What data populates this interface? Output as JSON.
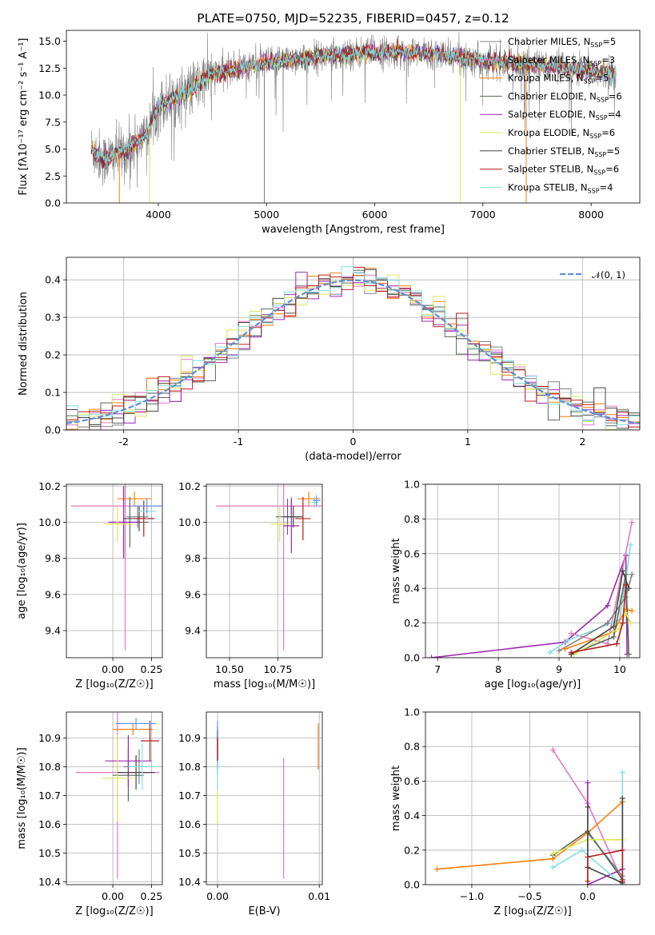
{
  "colors": {
    "Chabrier MILES": "#808080",
    "Salpeter MILES": "#e377c2",
    "Kroupa MILES": "#ff7f0e",
    "Chabrier ELODIE": "#556b55",
    "Salpeter ELODIE": "#9c27b0",
    "Kroupa ELODIE": "#dde65a",
    "Chabrier STELIB": "#444444",
    "Salpeter STELIB": "#b71c1c",
    "Kroupa STELIB": "#80dfe6",
    "extra_blue": "#6495ed",
    "normal_curve": "#5b8fd6"
  },
  "chart_data": [
    {
      "id": "spectrum",
      "type": "line",
      "title": "PLATE=0750, MJD=52235, FIBERID=0457, z=0.12",
      "xlabel": "wavelength [Angstrom, rest frame]",
      "ylabel": "Flux [fλ10⁻¹⁷ erg cm⁻² s⁻¹ A⁻¹]",
      "xlim": [
        3150,
        8450
      ],
      "ylim": [
        0,
        16
      ],
      "xticks": [
        4000,
        5000,
        6000,
        7000,
        8000
      ],
      "yticks": [
        0.0,
        2.5,
        5.0,
        7.5,
        10.0,
        12.5,
        15.0
      ],
      "grid": false,
      "legend_position": "top-right",
      "legend": [
        "Chabrier MILES, N_SSP=5",
        "Salpeter MILES, N_SSP=3",
        "Kroupa MILES, N_SSP=5",
        "Chabrier ELODIE, N_SSP=6",
        "Salpeter ELODIE, N_SSP=4",
        "Kroupa ELODIE, N_SSP=6",
        "Chabrier STELIB, N_SSP=5",
        "Salpeter STELIB, N_SSP=6",
        "Kroupa STELIB, N_SSP=4"
      ],
      "continuum": [
        [
          3380,
          5.0
        ],
        [
          3500,
          4.0
        ],
        [
          3700,
          4.8
        ],
        [
          3900,
          6.5
        ],
        [
          4000,
          9.0
        ],
        [
          4100,
          9.5
        ],
        [
          4300,
          10.5
        ],
        [
          4500,
          12.0
        ],
        [
          5000,
          13.0
        ],
        [
          5500,
          13.6
        ],
        [
          6000,
          14.0
        ],
        [
          6500,
          13.9
        ],
        [
          7000,
          13.2
        ],
        [
          7500,
          12.8
        ],
        [
          8000,
          12.2
        ],
        [
          8230,
          11.9
        ]
      ],
      "noise_scatter": 2.0,
      "dropouts": [
        3640,
        3920,
        4980,
        6790,
        7400
      ]
    },
    {
      "id": "residuals",
      "type": "line",
      "xlabel": "(data-model)/error",
      "ylabel": "Normed distribution",
      "xlim": [
        -2.5,
        2.5
      ],
      "ylim": [
        0,
        0.46
      ],
      "xticks": [
        -2,
        -1,
        0,
        1,
        2
      ],
      "yticks": [
        0.0,
        0.1,
        0.2,
        0.3,
        0.4
      ],
      "grid": true,
      "legend_position": "top-right",
      "legend": [
        "𝒩(0, 1)"
      ],
      "curve": "gaussian mean 0 sigma 1",
      "bin_width": 0.1
    },
    {
      "id": "age_vs_Z",
      "type": "scatter",
      "xlabel": "Z [log₁₀(Z/Z☉)]",
      "ylabel": "age  [log₁₀(age/yr)]",
      "xlim": [
        -0.3,
        0.32
      ],
      "ylim": [
        9.25,
        10.21
      ],
      "xticks": [
        0.0,
        0.25
      ],
      "xticklabels": [
        "0.00",
        "0.25"
      ],
      "yticks": [
        9.4,
        9.6,
        9.8,
        10.0,
        10.2
      ],
      "grid": true,
      "points": [
        {
          "model": "Chabrier MILES",
          "x": 0.16,
          "xerr": 0.07,
          "y": 10.03,
          "yerr": 0.06
        },
        {
          "model": "Salpeter MILES",
          "x": 0.08,
          "xerr": 0.35,
          "y": 10.09,
          "yerr": 0.8
        },
        {
          "model": "Kroupa MILES",
          "x": 0.14,
          "xerr": 0.11,
          "y": 10.13,
          "yerr": 0.04
        },
        {
          "model": "Chabrier ELODIE",
          "x": 0.11,
          "xerr": 0.12,
          "y": 10.0,
          "yerr": 0.14
        },
        {
          "model": "Salpeter ELODIE",
          "x": 0.07,
          "xerr": 0.1,
          "y": 10.0,
          "yerr": 0.2
        },
        {
          "model": "Kroupa ELODIE",
          "x": 0.03,
          "xerr": 0.09,
          "y": 9.99,
          "yerr": 0.1
        },
        {
          "model": "Chabrier STELIB",
          "x": 0.17,
          "xerr": 0.1,
          "y": 10.02,
          "yerr": 0.07
        },
        {
          "model": "Salpeter STELIB",
          "x": 0.2,
          "xerr": 0.06,
          "y": 10.02,
          "yerr": 0.1
        },
        {
          "model": "Kroupa STELIB",
          "x": 0.22,
          "xerr": 0.06,
          "y": 10.06,
          "yerr": 0.05
        },
        {
          "model": "extra_blue",
          "x": 0.22,
          "xerr": 0.1,
          "y": 10.09,
          "yerr": 0.04
        }
      ]
    },
    {
      "id": "age_vs_mass",
      "type": "scatter",
      "xlabel": "mass [log₁₀(M/M☉)]",
      "ylabel": "",
      "xlim": [
        10.38,
        10.98
      ],
      "ylim": [
        9.25,
        10.21
      ],
      "xticks": [
        10.5,
        10.75
      ],
      "xticklabels": [
        "10.50",
        "10.75"
      ],
      "yticks": [
        9.4,
        9.6,
        9.8,
        10.0,
        10.2
      ],
      "grid": true,
      "points": [
        {
          "model": "Chabrier MILES",
          "x": 10.82,
          "xerr": 0.05,
          "y": 10.09,
          "yerr": 0.05
        },
        {
          "model": "Salpeter MILES",
          "x": 10.78,
          "xerr": 0.35,
          "y": 10.09,
          "yerr": 0.8
        },
        {
          "model": "Kroupa MILES",
          "x": 10.91,
          "xerr": 0.06,
          "y": 10.13,
          "yerr": 0.04
        },
        {
          "model": "Chabrier ELODIE",
          "x": 10.8,
          "xerr": 0.06,
          "y": 10.03,
          "yerr": 0.1
        },
        {
          "model": "Salpeter ELODIE",
          "x": 10.82,
          "xerr": 0.04,
          "y": 9.98,
          "yerr": 0.15
        },
        {
          "model": "Kroupa ELODIE",
          "x": 10.76,
          "xerr": 0.05,
          "y": 9.99,
          "yerr": 0.1
        },
        {
          "model": "Chabrier STELIB",
          "x": 10.83,
          "xerr": 0.05,
          "y": 10.03,
          "yerr": 0.06
        },
        {
          "model": "Salpeter STELIB",
          "x": 10.88,
          "xerr": 0.04,
          "y": 10.02,
          "yerr": 0.12
        },
        {
          "model": "Kroupa STELIB",
          "x": 10.94,
          "xerr": 0.02,
          "y": 10.11,
          "yerr": 0.03
        },
        {
          "model": "extra_blue",
          "x": 10.95,
          "xerr": 0.02,
          "y": 10.12,
          "yerr": 0.03
        }
      ]
    },
    {
      "id": "weight_vs_age",
      "type": "line",
      "xlabel": "age  [log₁₀(age/yr)]",
      "ylabel": "mass weight",
      "xlim": [
        6.8,
        10.33
      ],
      "ylim": [
        0,
        1.0
      ],
      "xticks": [
        7,
        8,
        9,
        10
      ],
      "yticks": [
        0.0,
        0.2,
        0.4,
        0.6,
        0.8,
        1.0
      ],
      "grid": true,
      "series": [
        {
          "model": "Salpeter ELODIE",
          "x": [
            6.9,
            9.1,
            9.8,
            10.1,
            10.12
          ],
          "y": [
            0.0,
            0.09,
            0.3,
            0.59,
            0.02
          ]
        },
        {
          "model": "Salpeter MILES",
          "x": [
            9.2,
            9.8,
            10.2
          ],
          "y": [
            0.14,
            0.08,
            0.78
          ]
        },
        {
          "model": "Kroupa STELIB",
          "x": [
            8.85,
            9.15,
            10.0,
            10.18
          ],
          "y": [
            0.03,
            0.1,
            0.22,
            0.65
          ]
        },
        {
          "model": "Chabrier MILES",
          "x": [
            9.0,
            9.8,
            10.1,
            10.2
          ],
          "y": [
            0.04,
            0.2,
            0.35,
            0.48
          ]
        },
        {
          "model": "Kroupa MILES",
          "x": [
            9.1,
            9.9,
            10.1,
            10.2
          ],
          "y": [
            0.05,
            0.15,
            0.28,
            0.27
          ]
        },
        {
          "model": "Chabrier ELODIE",
          "x": [
            9.2,
            9.9,
            10.1,
            10.15
          ],
          "y": [
            0.02,
            0.12,
            0.48,
            0.02
          ]
        },
        {
          "model": "Kroupa ELODIE",
          "x": [
            9.25,
            10.0,
            10.1,
            10.18
          ],
          "y": [
            0.02,
            0.17,
            0.26,
            0.2
          ]
        },
        {
          "model": "Chabrier STELIB",
          "x": [
            9.2,
            9.9,
            10.05,
            10.15
          ],
          "y": [
            0.02,
            0.18,
            0.5,
            0.4
          ]
        },
        {
          "model": "Salpeter STELIB",
          "x": [
            9.2,
            9.95,
            10.05,
            10.1
          ],
          "y": [
            0.03,
            0.08,
            0.2,
            0.42
          ]
        }
      ]
    },
    {
      "id": "mass_vs_Z",
      "type": "scatter",
      "xlabel": "Z [log₁₀(Z/Z☉)]",
      "ylabel": "mass [log₁₀(M/M☉)]",
      "xlim": [
        -0.3,
        0.32
      ],
      "ylim": [
        10.39,
        10.99
      ],
      "xticks": [
        0.0,
        0.25
      ],
      "xticklabels": [
        "0.00",
        "0.25"
      ],
      "yticks": [
        10.4,
        10.5,
        10.6,
        10.7,
        10.8,
        10.9
      ],
      "grid": true,
      "points": [
        {
          "model": "Chabrier MILES",
          "x": 0.17,
          "xerr": 0.1,
          "y": 10.8,
          "yerr": 0.06
        },
        {
          "model": "Salpeter MILES",
          "x": 0.03,
          "xerr": 0.27,
          "y": 10.78,
          "yerr": 0.37
        },
        {
          "model": "Kroupa MILES",
          "x": 0.13,
          "xerr": 0.13,
          "y": 10.93,
          "yerr": 0.02
        },
        {
          "model": "Chabrier ELODIE",
          "x": 0.1,
          "xerr": 0.1,
          "y": 10.77,
          "yerr": 0.09
        },
        {
          "model": "Salpeter ELODIE",
          "x": 0.1,
          "xerr": 0.15,
          "y": 10.82,
          "yerr": 0.09
        },
        {
          "model": "Kroupa ELODIE",
          "x": 0.03,
          "xerr": 0.1,
          "y": 10.76,
          "yerr": 0.15
        },
        {
          "model": "Chabrier STELIB",
          "x": 0.15,
          "xerr": 0.12,
          "y": 10.78,
          "yerr": 0.06
        },
        {
          "model": "Salpeter STELIB",
          "x": 0.24,
          "xerr": 0.06,
          "y": 10.89,
          "yerr": 0.07
        },
        {
          "model": "Kroupa STELIB",
          "x": 0.19,
          "xerr": 0.09,
          "y": 10.8,
          "yerr": 0.08
        },
        {
          "model": "extra_blue",
          "x": 0.15,
          "xerr": 0.13,
          "y": 10.95,
          "yerr": 0.02
        }
      ]
    },
    {
      "id": "mass_vs_ebv",
      "type": "scatter",
      "xlabel": "E(B-V)",
      "ylabel": "",
      "xlim": [
        -0.0011,
        0.0103
      ],
      "ylim": [
        10.39,
        10.99
      ],
      "xticks": [
        0.0,
        0.01
      ],
      "xticklabels": [
        "0.00",
        "0.01"
      ],
      "yticks": [
        10.4,
        10.5,
        10.6,
        10.7,
        10.8,
        10.9
      ],
      "grid": true,
      "points": [
        {
          "model": "Chabrier MILES",
          "x": 0.0,
          "xerr": 0.0,
          "y": 10.85,
          "yerr": 0.08
        },
        {
          "model": "Salpeter MILES",
          "x": 0.0065,
          "xerr": 0.0,
          "y": 10.62,
          "yerr": 0.21
        },
        {
          "model": "Kroupa MILES",
          "x": 0.0099,
          "xerr": 0.0,
          "y": 10.87,
          "yerr": 0.08
        },
        {
          "model": "Chabrier ELODIE",
          "x": 0.0,
          "xerr": 0.0,
          "y": 10.85,
          "yerr": 0.06
        },
        {
          "model": "Salpeter ELODIE",
          "x": 0.0,
          "xerr": 0.0,
          "y": 10.87,
          "yerr": 0.07
        },
        {
          "model": "Kroupa ELODIE",
          "x": 0.0,
          "xerr": 0.0,
          "y": 10.67,
          "yerr": 0.07
        },
        {
          "model": "Chabrier STELIB",
          "x": 0.0,
          "xerr": 0.0,
          "y": 10.87,
          "yerr": 0.05
        },
        {
          "model": "Salpeter STELIB",
          "x": 0.0,
          "xerr": 0.0,
          "y": 10.88,
          "yerr": 0.05
        },
        {
          "model": "Kroupa STELIB",
          "x": 0.0,
          "xerr": 0.0,
          "y": 10.77,
          "yerr": 0.05
        },
        {
          "model": "extra_blue",
          "x": 0.0,
          "xerr": 0.0,
          "y": 10.93,
          "yerr": 0.03
        }
      ]
    },
    {
      "id": "weight_vs_Z",
      "type": "line",
      "xlabel": "Z [log₁₀(Z/Z☉)]",
      "ylabel": "mass weight",
      "xlim": [
        -1.4,
        0.45
      ],
      "ylim": [
        0,
        1.0
      ],
      "xticks": [
        -1.0,
        -0.5,
        0.0
      ],
      "xticklabels": [
        "−1.0",
        "−0.5",
        "0.0"
      ],
      "yticks": [
        0.0,
        0.2,
        0.4,
        0.6,
        0.8,
        1.0
      ],
      "grid": true,
      "series": [
        {
          "model": "Salpeter MILES",
          "x": [
            -0.3,
            0.0,
            0.3
          ],
          "y": [
            0.78,
            0.47,
            0.02
          ]
        },
        {
          "model": "Salpeter ELODIE",
          "x": [
            0.0,
            0.0,
            0.3
          ],
          "y": [
            0.59,
            0.0,
            0.09
          ]
        },
        {
          "model": "Kroupa STELIB",
          "x": [
            -0.3,
            -0.05,
            0.3,
            0.3
          ],
          "y": [
            0.1,
            0.2,
            0.0,
            0.65
          ]
        },
        {
          "model": "Chabrier MILES",
          "x": [
            0.0,
            0.3,
            0.3
          ],
          "y": [
            0.3,
            0.05,
            0.48
          ]
        },
        {
          "model": "Kroupa MILES",
          "x": [
            -1.3,
            -0.3,
            0.0,
            0.3
          ],
          "y": [
            0.09,
            0.15,
            0.3,
            0.48
          ]
        },
        {
          "model": "Chabrier ELODIE",
          "x": [
            -0.3,
            0.0,
            0.3
          ],
          "y": [
            0.17,
            0.31,
            0.03
          ]
        },
        {
          "model": "Kroupa ELODIE",
          "x": [
            -0.3,
            0.0,
            0.3
          ],
          "y": [
            0.18,
            0.26,
            0.26
          ]
        },
        {
          "model": "Chabrier STELIB",
          "x": [
            0.0,
            0.0,
            0.3,
            0.3
          ],
          "y": [
            0.45,
            0.1,
            0.01,
            0.5
          ]
        },
        {
          "model": "Salpeter STELIB",
          "x": [
            0.0,
            0.0,
            0.3,
            0.3
          ],
          "y": [
            0.02,
            0.16,
            0.2,
            0.02
          ]
        }
      ]
    }
  ]
}
